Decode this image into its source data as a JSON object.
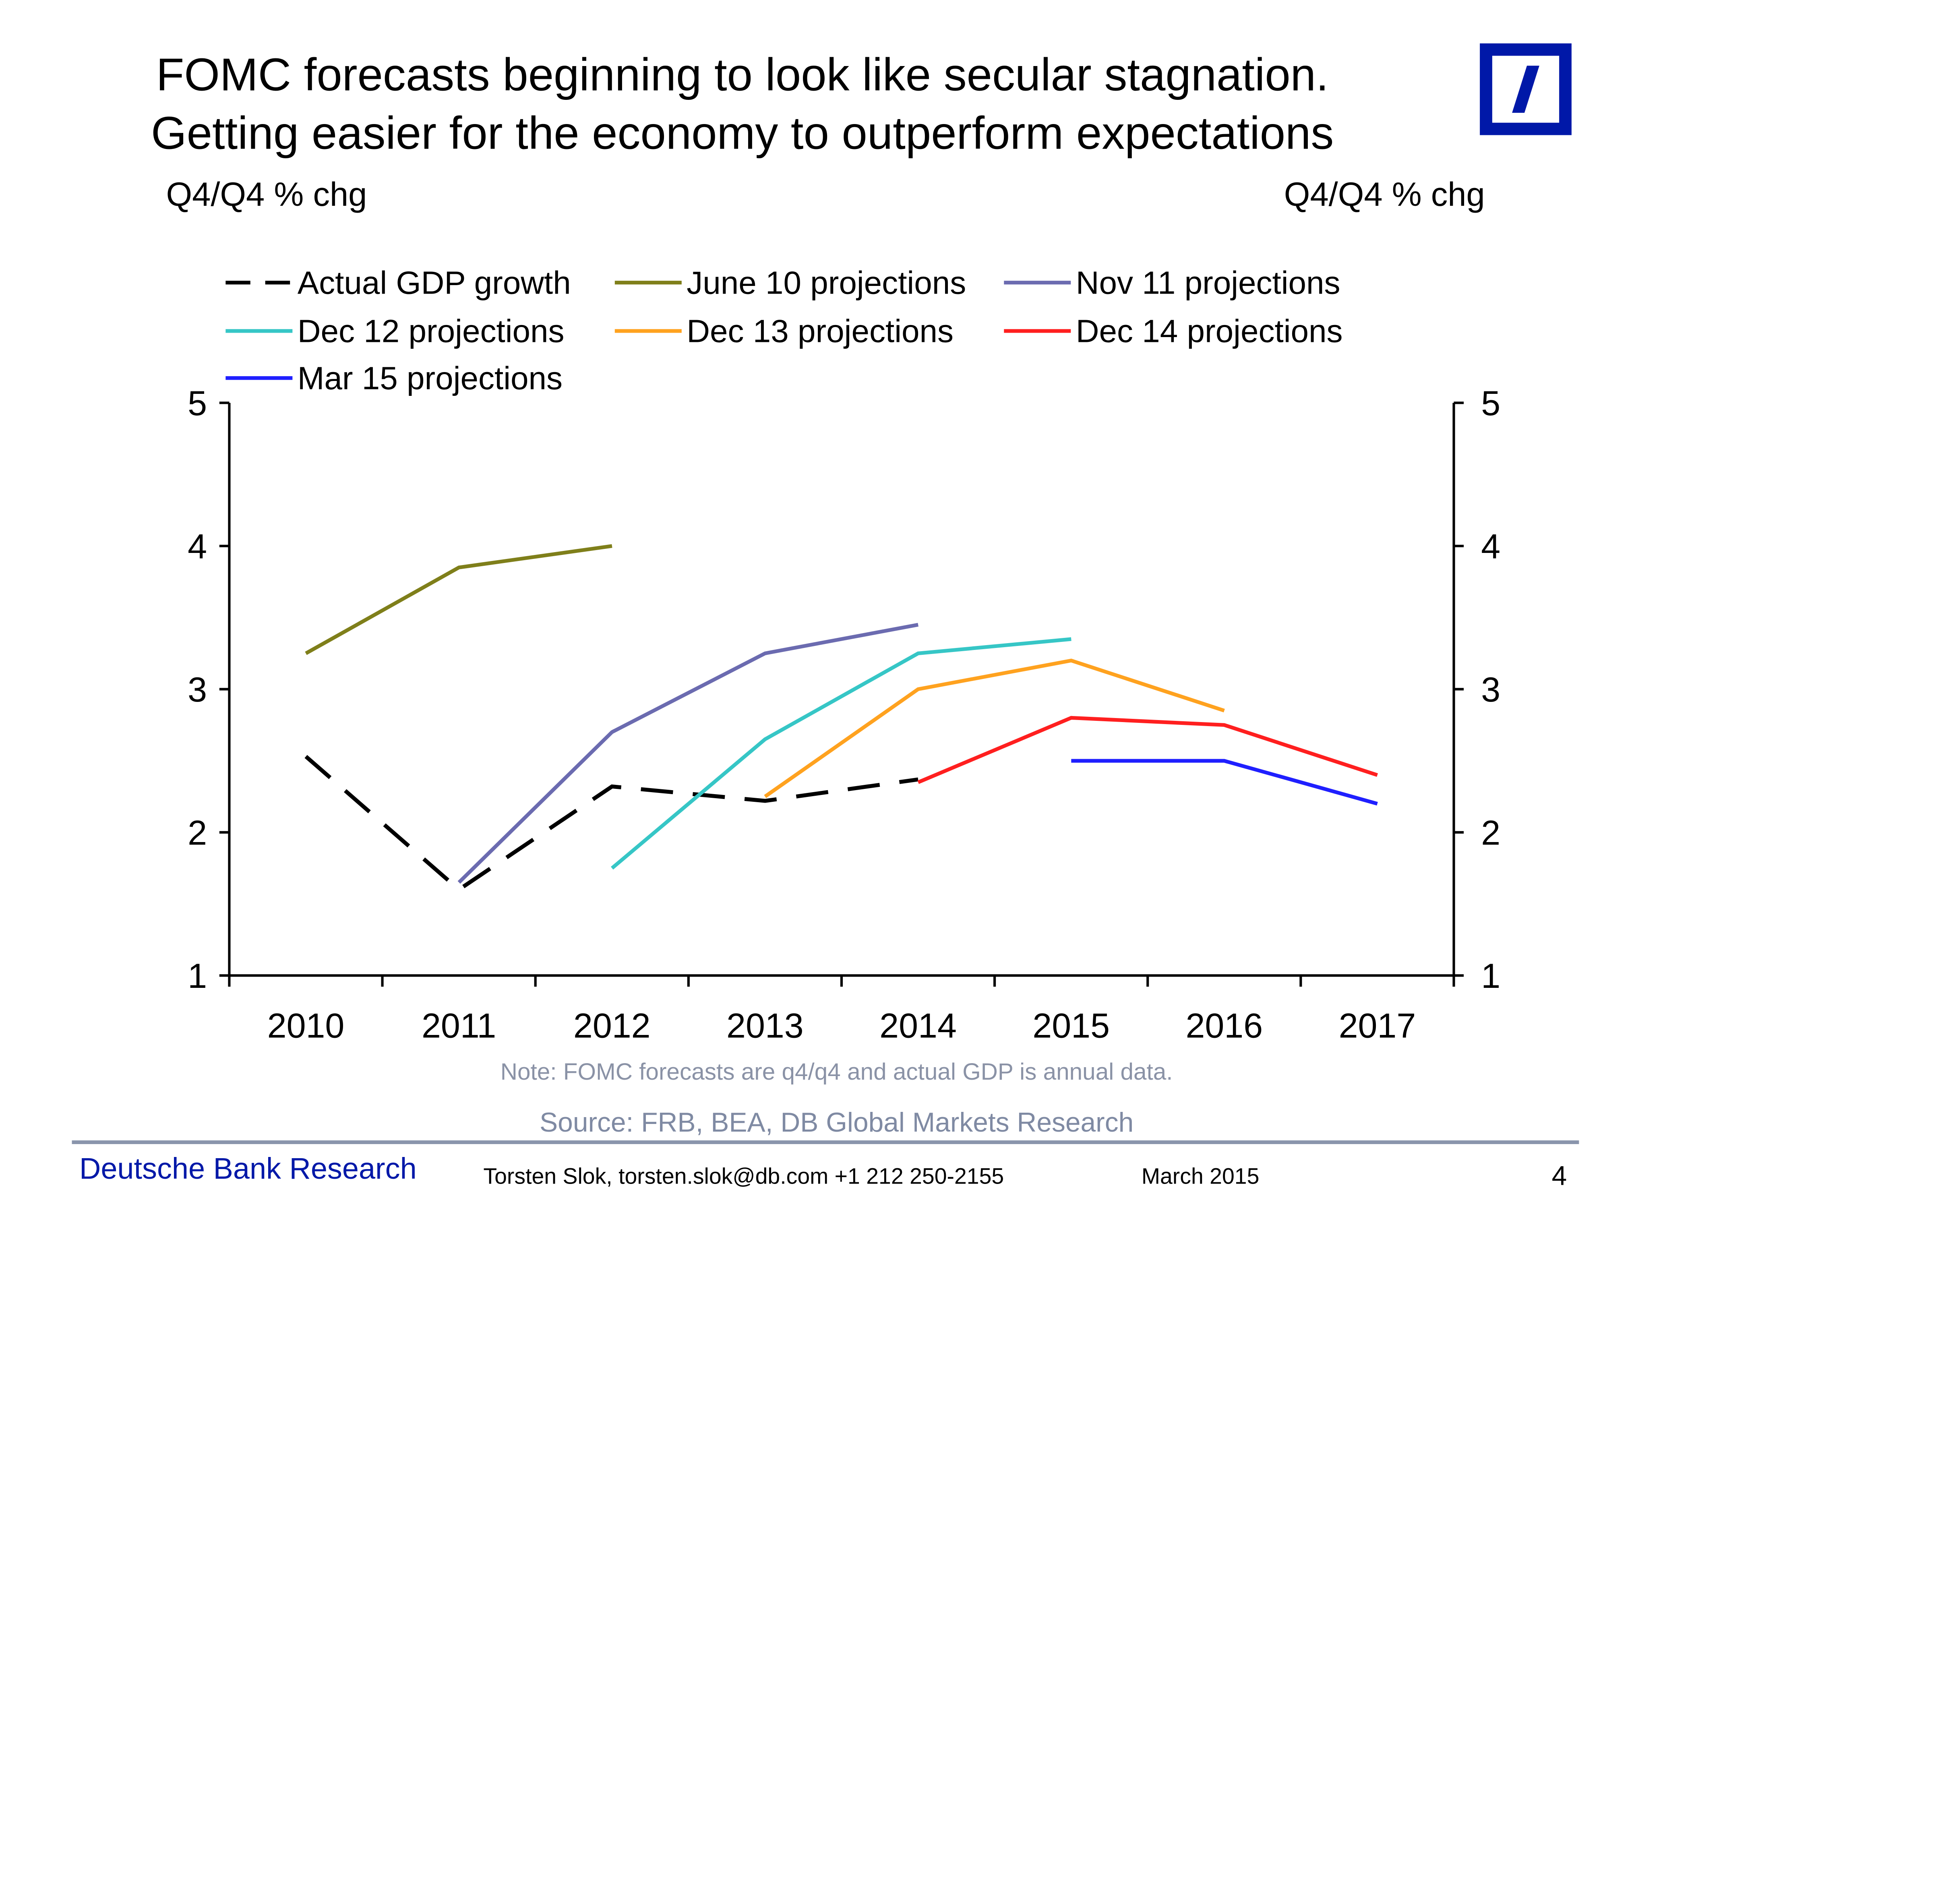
{
  "title": {
    "line1": "FOMC forecasts beginning to look like secular stagnation.",
    "line2": "Getting easier for the economy to outperform expectations"
  },
  "axis_units": {
    "left": "Q4/Q4 % chg",
    "right": "Q4/Q4 % chg"
  },
  "chart_data": {
    "type": "line",
    "title": "FOMC forecasts beginning to look like secular stagnation. Getting easier for the economy to outperform expectations",
    "xlabel": "",
    "ylabel": "Q4/Q4 % chg",
    "ylabel_right": "Q4/Q4 % chg",
    "categories": [
      "2010",
      "2011",
      "2012",
      "2013",
      "2014",
      "2015",
      "2016",
      "2017"
    ],
    "ylim": [
      1,
      5
    ],
    "yticks": [
      1,
      2,
      3,
      4,
      5
    ],
    "grid": false,
    "legend_position": "top",
    "series": [
      {
        "name": "Actual GDP growth",
        "color": "#000000",
        "dash": true,
        "x": [
          "2010",
          "2011",
          "2012",
          "2013",
          "2014"
        ],
        "values": [
          2.53,
          1.6,
          2.32,
          2.22,
          2.37
        ]
      },
      {
        "name": "June 10 projections",
        "color": "#7f7f1a",
        "dash": false,
        "x": [
          "2010",
          "2011",
          "2012"
        ],
        "values": [
          3.25,
          3.85,
          4.0
        ]
      },
      {
        "name": "Nov 11 projections",
        "color": "#6b6bb0",
        "dash": false,
        "x": [
          "2011",
          "2012",
          "2013",
          "2014"
        ],
        "values": [
          1.65,
          2.7,
          3.25,
          3.45
        ]
      },
      {
        "name": "Dec 12 projections",
        "color": "#36c6c6",
        "dash": false,
        "x": [
          "2012",
          "2013",
          "2014",
          "2015"
        ],
        "values": [
          1.75,
          2.65,
          3.25,
          3.35
        ]
      },
      {
        "name": "Dec 13 projections",
        "color": "#ffa21f",
        "dash": false,
        "x": [
          "2013",
          "2014",
          "2015",
          "2016"
        ],
        "values": [
          2.25,
          3.0,
          3.2,
          2.85
        ]
      },
      {
        "name": "Dec 14 projections",
        "color": "#ff1f1f",
        "dash": false,
        "x": [
          "2014",
          "2015",
          "2016",
          "2017"
        ],
        "values": [
          2.35,
          2.8,
          2.75,
          2.4
        ]
      },
      {
        "name": "Mar 15 projections",
        "color": "#1f1fff",
        "dash": false,
        "x": [
          "2015",
          "2016",
          "2017"
        ],
        "values": [
          2.5,
          2.5,
          2.2
        ]
      }
    ]
  },
  "note": "Note: FOMC forecasts are q4/q4 and actual GDP is annual data.",
  "source": "Source: FRB, BEA, DB Global Markets Research",
  "footer": {
    "brand": "Deutsche Bank Research",
    "contact": "Torsten Slok, torsten.slok@db.com  +1 212 250-2155",
    "date": "March  2015",
    "page": "4"
  }
}
